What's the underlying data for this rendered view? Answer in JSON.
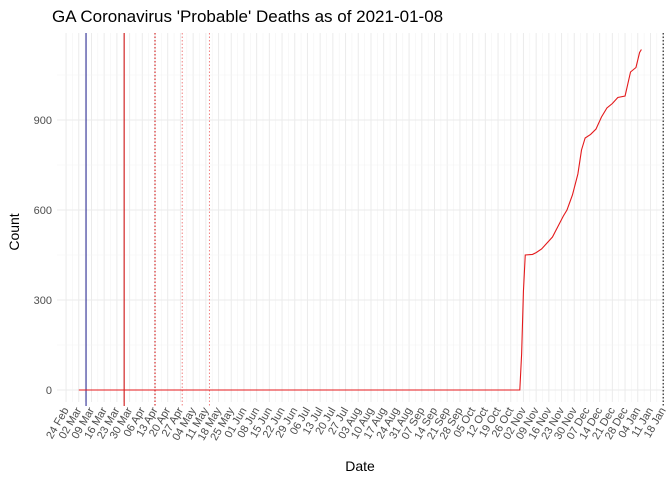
{
  "chart_data": {
    "type": "line",
    "title": "GA Coronavirus 'Probable' Deaths as of 2021-01-08",
    "xlabel": "Date",
    "ylabel": "Count",
    "grid": true,
    "legend": "none",
    "x_axis": {
      "type": "date",
      "range": [
        "2020-02-19",
        "2021-01-19"
      ],
      "tick_dates": [
        "2020-02-24",
        "2020-03-02",
        "2020-03-09",
        "2020-03-16",
        "2020-03-23",
        "2020-03-30",
        "2020-04-06",
        "2020-04-13",
        "2020-04-20",
        "2020-04-27",
        "2020-05-04",
        "2020-05-11",
        "2020-05-18",
        "2020-05-25",
        "2020-06-01",
        "2020-06-08",
        "2020-06-15",
        "2020-06-22",
        "2020-06-29",
        "2020-07-06",
        "2020-07-13",
        "2020-07-20",
        "2020-07-27",
        "2020-08-03",
        "2020-08-10",
        "2020-08-17",
        "2020-08-24",
        "2020-08-31",
        "2020-09-07",
        "2020-09-14",
        "2020-09-21",
        "2020-09-28",
        "2020-10-05",
        "2020-10-12",
        "2020-10-19",
        "2020-10-26",
        "2020-11-02",
        "2020-11-09",
        "2020-11-16",
        "2020-11-23",
        "2020-11-30",
        "2020-12-07",
        "2020-12-14",
        "2020-12-21",
        "2020-12-28",
        "2021-01-04",
        "2021-01-11",
        "2021-01-18"
      ],
      "tick_labels": [
        "24 Feb",
        "02 Mar",
        "09 Mar",
        "16 Mar",
        "23 Mar",
        "30 Mar",
        "06 Apr",
        "13 Apr",
        "20 Apr",
        "27 Apr",
        "04 May",
        "11 May",
        "18 May",
        "25 May",
        "01 Jun",
        "08 Jun",
        "15 Jun",
        "22 Jun",
        "29 Jun",
        "06 Jul",
        "13 Jul",
        "20 Jul",
        "27 Jul",
        "03 Aug",
        "10 Aug",
        "17 Aug",
        "24 Aug",
        "31 Aug",
        "07 Sep",
        "14 Sep",
        "21 Sep",
        "28 Sep",
        "05 Oct",
        "12 Oct",
        "19 Oct",
        "26 Oct",
        "02 Nov",
        "09 Nov",
        "16 Nov",
        "23 Nov",
        "30 Nov",
        "07 Dec",
        "14 Dec",
        "21 Dec",
        "28 Dec",
        "04 Jan",
        "11 Jan",
        "18 Jan"
      ]
    },
    "y_axis": {
      "range": [
        -40,
        1190
      ],
      "ticks": [
        0,
        300,
        600,
        900
      ],
      "tick_labels": [
        "0",
        "300",
        "600",
        "900"
      ]
    },
    "series": [
      {
        "color": "#e41a1c",
        "points": [
          [
            "2020-03-02",
            0
          ],
          [
            "2020-10-31",
            0
          ],
          [
            "2020-11-01",
            120
          ],
          [
            "2020-11-02",
            330
          ],
          [
            "2020-11-03",
            450
          ],
          [
            "2020-11-07",
            452
          ],
          [
            "2020-11-09",
            458
          ],
          [
            "2020-11-12",
            470
          ],
          [
            "2020-11-15",
            490
          ],
          [
            "2020-11-18",
            510
          ],
          [
            "2020-11-21",
            545
          ],
          [
            "2020-11-24",
            580
          ],
          [
            "2020-11-26",
            600
          ],
          [
            "2020-11-29",
            650
          ],
          [
            "2020-12-02",
            720
          ],
          [
            "2020-12-04",
            800
          ],
          [
            "2020-12-06",
            840
          ],
          [
            "2020-12-09",
            852
          ],
          [
            "2020-12-12",
            870
          ],
          [
            "2020-12-15",
            910
          ],
          [
            "2020-12-18",
            940
          ],
          [
            "2020-12-21",
            955
          ],
          [
            "2020-12-24",
            975
          ],
          [
            "2020-12-28",
            980
          ],
          [
            "2020-12-31",
            1060
          ],
          [
            "2021-01-03",
            1075
          ],
          [
            "2021-01-05",
            1125
          ],
          [
            "2021-01-06",
            1135
          ]
        ]
      }
    ],
    "reference_lines": [
      {
        "date": "2020-03-06",
        "color": "#1a1a8c",
        "style": "solid"
      },
      {
        "date": "2020-03-27",
        "color": "#cc0000",
        "style": "solid"
      },
      {
        "date": "2020-04-13",
        "color": "#cc0000",
        "style": "dotted"
      },
      {
        "date": "2020-04-28",
        "color": "#f08080",
        "style": "dotted"
      },
      {
        "date": "2020-05-13",
        "color": "#f08080",
        "style": "dotted"
      },
      {
        "date": "2021-01-18",
        "color": "#000000",
        "style": "dotted"
      }
    ]
  }
}
